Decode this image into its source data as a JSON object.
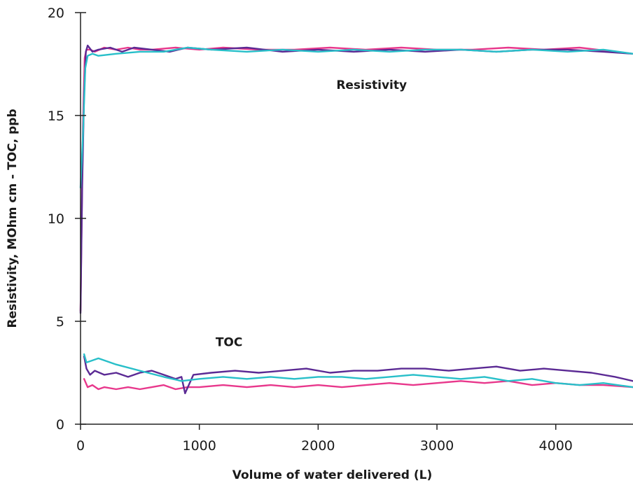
{
  "chart_data": {
    "type": "line",
    "title": "",
    "xlabel": "Volume of water delivered (L)",
    "ylabel": "Resistivity, MOhm cm - TOC, ppb",
    "xlim": [
      0,
      4650
    ],
    "ylim": [
      0,
      20
    ],
    "x_ticks": [
      0,
      1000,
      2000,
      3000,
      4000
    ],
    "x_tick_labels": [
      "0",
      "1000",
      "2000",
      "3000",
      "4000"
    ],
    "y_ticks": [
      0,
      5,
      10,
      15,
      20
    ],
    "y_tick_labels": [
      "0",
      "5",
      "10",
      "15",
      "20"
    ],
    "grid": false,
    "legend": "none",
    "annotations": [
      {
        "text": "Resistivity",
        "x": 2450,
        "y": 16.3
      },
      {
        "text": "TOC",
        "x": 1250,
        "y": 3.8
      }
    ],
    "series": [
      {
        "group": "Resistivity",
        "color": "#e8388c",
        "x": [
          0,
          20,
          35,
          50,
          80,
          120,
          200,
          300,
          400,
          500,
          600,
          800,
          1000,
          1200,
          1500,
          1800,
          2100,
          2400,
          2700,
          3000,
          3300,
          3600,
          3900,
          4200,
          4500,
          4650
        ],
        "y": [
          5.5,
          14.5,
          17.8,
          18.2,
          18.2,
          18.1,
          18.3,
          18.2,
          18.3,
          18.2,
          18.2,
          18.3,
          18.2,
          18.3,
          18.2,
          18.2,
          18.3,
          18.2,
          18.3,
          18.2,
          18.2,
          18.3,
          18.2,
          18.3,
          18.1,
          18.0
        ]
      },
      {
        "group": "Resistivity",
        "color": "#5b2a94",
        "x": [
          0,
          15,
          30,
          45,
          60,
          100,
          150,
          250,
          350,
          450,
          600,
          750,
          900,
          1100,
          1400,
          1700,
          2000,
          2300,
          2600,
          2900,
          3200,
          3500,
          3800,
          4100,
          4400,
          4650
        ],
        "y": [
          5.4,
          11.8,
          16.0,
          18.1,
          18.4,
          18.1,
          18.2,
          18.3,
          18.1,
          18.3,
          18.2,
          18.1,
          18.3,
          18.2,
          18.3,
          18.1,
          18.2,
          18.1,
          18.2,
          18.1,
          18.2,
          18.1,
          18.2,
          18.2,
          18.1,
          18.0
        ]
      },
      {
        "group": "Resistivity",
        "color": "#28bfc9",
        "x": [
          0,
          20,
          40,
          60,
          100,
          150,
          300,
          500,
          700,
          900,
          1100,
          1400,
          1700,
          2000,
          2300,
          2600,
          2900,
          3200,
          3500,
          3800,
          4100,
          4400,
          4650
        ],
        "y": [
          11.5,
          14.0,
          17.3,
          17.9,
          18.0,
          17.9,
          18.0,
          18.1,
          18.1,
          18.3,
          18.2,
          18.1,
          18.2,
          18.1,
          18.2,
          18.1,
          18.2,
          18.2,
          18.1,
          18.2,
          18.1,
          18.2,
          18.0
        ]
      },
      {
        "group": "TOC",
        "color": "#e8388c",
        "x": [
          30,
          60,
          100,
          150,
          200,
          300,
          400,
          500,
          600,
          700,
          800,
          900,
          1000,
          1200,
          1400,
          1600,
          1800,
          2000,
          2200,
          2400,
          2600,
          2800,
          3000,
          3200,
          3400,
          3600,
          3800,
          4000,
          4200,
          4400,
          4650
        ],
        "y": [
          2.2,
          1.8,
          1.9,
          1.7,
          1.8,
          1.7,
          1.8,
          1.7,
          1.8,
          1.9,
          1.7,
          1.8,
          1.8,
          1.9,
          1.8,
          1.9,
          1.8,
          1.9,
          1.8,
          1.9,
          2.0,
          1.9,
          2.0,
          2.1,
          2.0,
          2.1,
          1.9,
          2.0,
          1.9,
          1.9,
          1.8
        ]
      },
      {
        "group": "TOC",
        "color": "#5b2a94",
        "x": [
          30,
          50,
          80,
          120,
          200,
          300,
          400,
          500,
          600,
          700,
          800,
          850,
          880,
          950,
          1100,
          1300,
          1500,
          1700,
          1900,
          2100,
          2300,
          2500,
          2700,
          2900,
          3100,
          3300,
          3500,
          3700,
          3900,
          4100,
          4300,
          4500,
          4650
        ],
        "y": [
          3.3,
          2.7,
          2.4,
          2.6,
          2.4,
          2.5,
          2.3,
          2.5,
          2.6,
          2.4,
          2.2,
          2.3,
          1.5,
          2.4,
          2.5,
          2.6,
          2.5,
          2.6,
          2.7,
          2.5,
          2.6,
          2.6,
          2.7,
          2.7,
          2.6,
          2.7,
          2.8,
          2.6,
          2.7,
          2.6,
          2.5,
          2.3,
          2.1
        ]
      },
      {
        "group": "TOC",
        "color": "#28bfc9",
        "x": [
          30,
          50,
          150,
          300,
          500,
          700,
          850,
          1000,
          1200,
          1400,
          1600,
          1800,
          2000,
          2200,
          2400,
          2600,
          2800,
          3000,
          3200,
          3400,
          3600,
          3800,
          4000,
          4200,
          4400,
          4650
        ],
        "y": [
          3.4,
          3.0,
          3.2,
          2.9,
          2.6,
          2.3,
          2.1,
          2.2,
          2.3,
          2.2,
          2.3,
          2.2,
          2.3,
          2.3,
          2.2,
          2.3,
          2.4,
          2.3,
          2.2,
          2.3,
          2.1,
          2.2,
          2.0,
          1.9,
          2.0,
          1.8
        ]
      }
    ]
  }
}
